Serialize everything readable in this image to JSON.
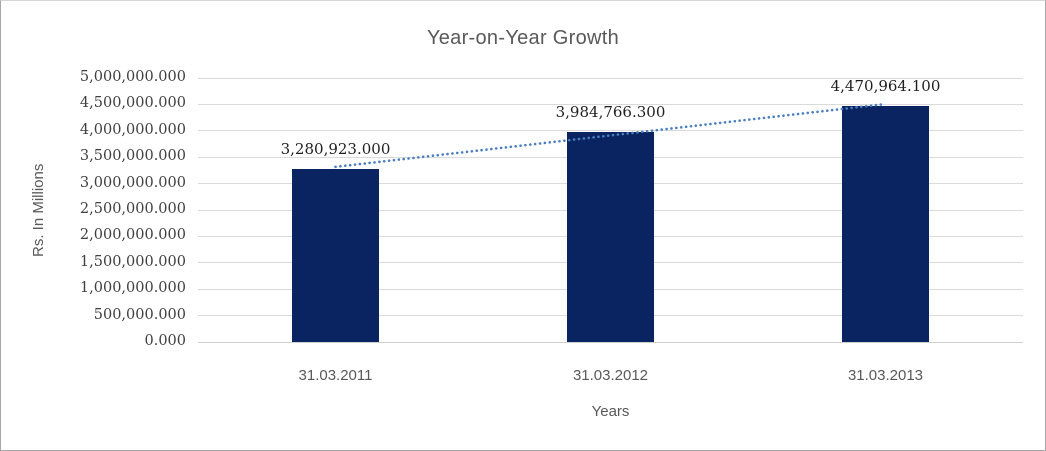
{
  "window": {
    "background": "#ffffff",
    "border_color": "#a6a6a6"
  },
  "chart_data": {
    "type": "bar",
    "title": "Year-on-Year Growth",
    "xlabel": "Years",
    "ylabel": "Rs. In Millions",
    "categories": [
      "31.03.2011",
      "31.03.2012",
      "31.03.2013"
    ],
    "values": [
      3280923.0,
      3984766.3,
      4470964.1
    ],
    "data_labels": [
      "3,280,923.000",
      "3,984,766.300",
      "4,470,964.100"
    ],
    "ylim": [
      0,
      5000000
    ],
    "ytick_step": 500000,
    "ytick_labels": [
      "0.000",
      "500,000.000",
      "1,000,000.000",
      "1,500,000.000",
      "2,000,000.000",
      "2,500,000.000",
      "3,000,000.000",
      "3,500,000.000",
      "4,000,000.000",
      "4,500,000.000",
      "5,000,000.000"
    ],
    "grid": true,
    "legend": "none",
    "bar_color": "#0a2461",
    "trendline": {
      "type": "linear",
      "style": "dotted",
      "color": "#4a7ebf"
    },
    "colors": {
      "title": "#595959",
      "axis_title": "#595959",
      "category_label": "#595959",
      "tick_label": "#404040",
      "data_label": "#1f1f1f",
      "gridline": "#dadada",
      "axis_line": "#d0d0d0"
    }
  }
}
